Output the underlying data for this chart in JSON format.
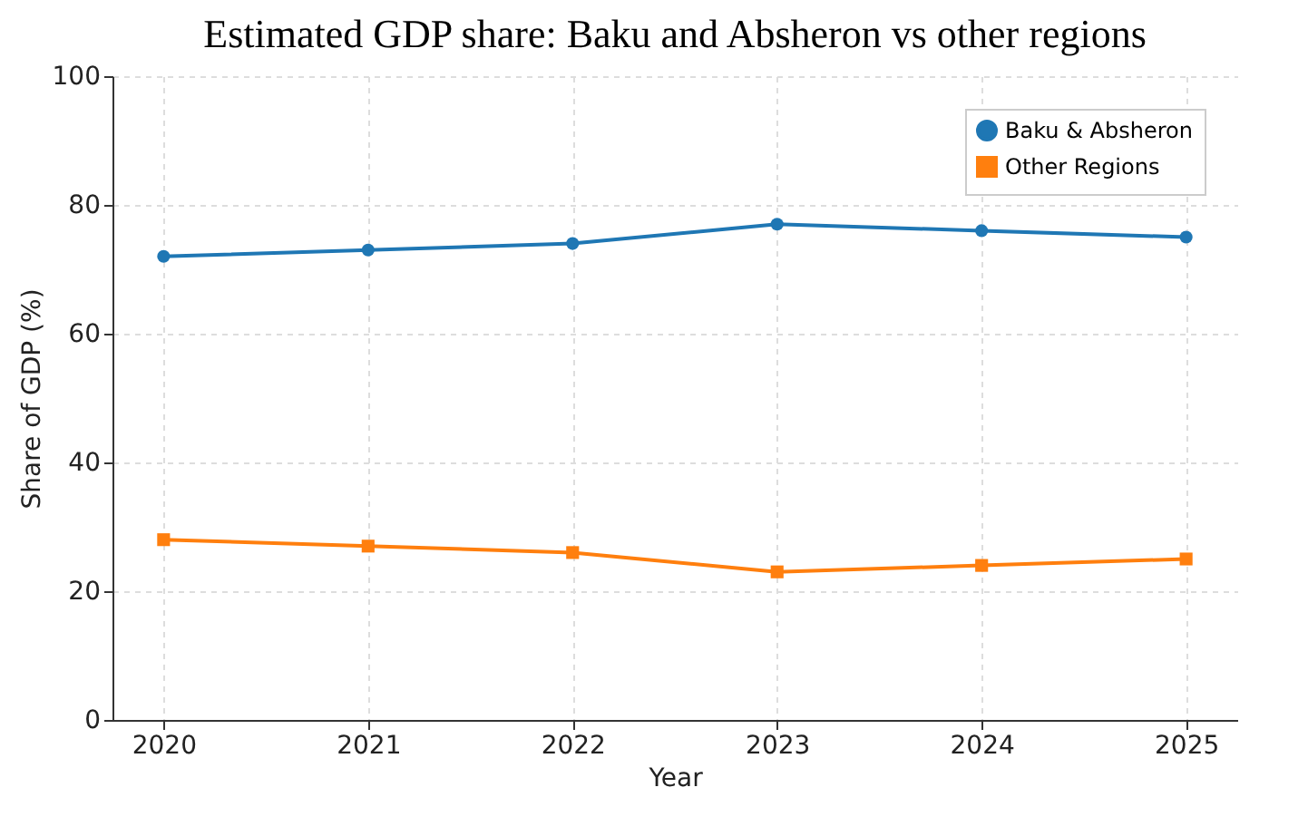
{
  "chart_data": {
    "type": "line",
    "title": "Estimated GDP share: Baku and Absheron vs other regions",
    "xlabel": "Year",
    "ylabel": "Share of GDP (%)",
    "x": [
      2020,
      2021,
      2022,
      2023,
      2024,
      2025
    ],
    "series": [
      {
        "name": "Baku & Absheron",
        "color": "#1f77b4",
        "marker": "circle",
        "values": [
          72,
          73,
          74,
          77,
          76,
          75
        ]
      },
      {
        "name": "Other Regions",
        "color": "#ff7f0e",
        "marker": "square",
        "values": [
          28,
          27,
          26,
          23,
          24,
          25
        ]
      }
    ],
    "xlim": [
      2019.75,
      2025.25
    ],
    "xticks": [
      2020,
      2021,
      2022,
      2023,
      2024,
      2025
    ],
    "ylim": [
      0,
      100
    ],
    "yticks": [
      0,
      20,
      40,
      60,
      80,
      100
    ],
    "grid": true,
    "legend": "top right",
    "line_style": "solid"
  }
}
